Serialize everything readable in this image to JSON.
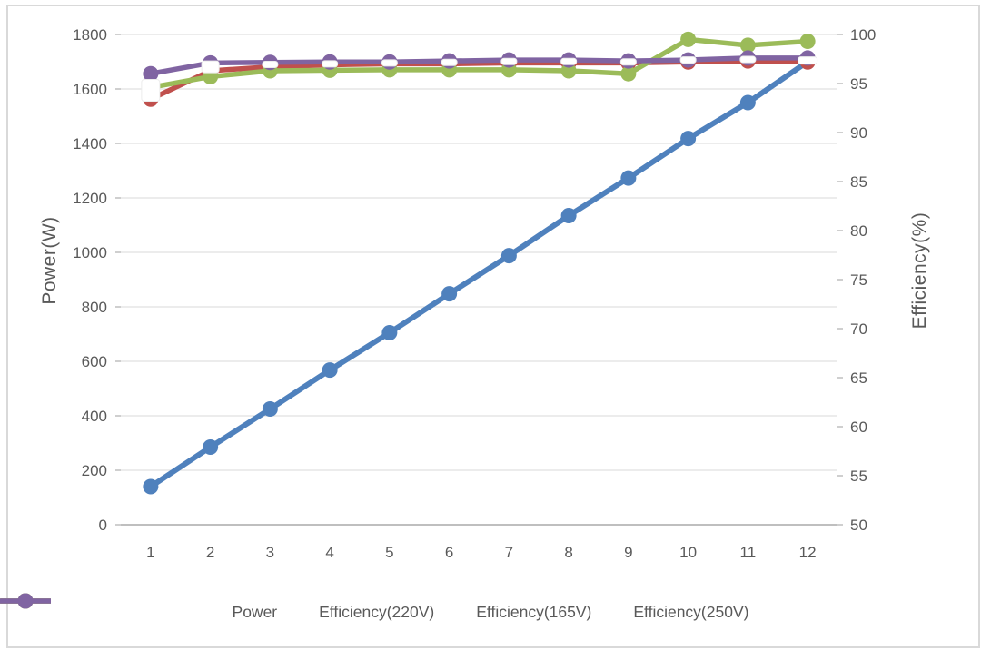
{
  "chart_data": {
    "type": "line",
    "x_categories": [
      "1",
      "2",
      "3",
      "4",
      "5",
      "6",
      "7",
      "8",
      "9",
      "10",
      "11",
      "12"
    ],
    "series": [
      {
        "name": "Power",
        "axis": "left",
        "color": "#4F81BD",
        "values": [
          140,
          285,
          425,
          568,
          705,
          848,
          988,
          1135,
          1273,
          1418,
          1550,
          1700
        ]
      },
      {
        "name": "Efficiency(220V)",
        "axis": "right",
        "color": "#C0504D",
        "values": [
          93.4,
          96.3,
          96.7,
          96.9,
          97.0,
          97.0,
          97.1,
          97.1,
          97.1,
          97.2,
          97.3,
          97.2
        ]
      },
      {
        "name": "Efficiency(165V)",
        "axis": "right",
        "color": "#9BBB59",
        "values": [
          94.6,
          95.7,
          96.3,
          96.35,
          96.4,
          96.4,
          96.4,
          96.3,
          96.0,
          99.5,
          98.9,
          99.3
        ]
      },
      {
        "name": "Efficiency(250V)",
        "axis": "right",
        "color": "#8064A2",
        "values": [
          96.0,
          97.1,
          97.15,
          97.2,
          97.2,
          97.3,
          97.4,
          97.4,
          97.3,
          97.4,
          97.6,
          97.6
        ]
      }
    ],
    "left_axis": {
      "title": "Power(W)",
      "min": 0,
      "max": 1800,
      "tick_step": 200,
      "ticks": [
        1800,
        1600,
        1400,
        1200,
        1000,
        800,
        600,
        400,
        200,
        0
      ]
    },
    "right_axis": {
      "title": "Efficiency(%)",
      "min": 50,
      "max": 100,
      "tick_step": 5,
      "ticks": [
        100,
        95,
        90,
        85,
        80,
        75,
        70,
        65,
        60,
        55,
        50
      ]
    },
    "grid": true,
    "legend_position": "bottom",
    "marker_overlays": [
      {
        "x": 1,
        "value": 94.3,
        "w": 20,
        "h": 24
      },
      {
        "x": 2,
        "value": 96.7,
        "w": 19,
        "h": 13
      },
      {
        "x": 3,
        "value": 96.95,
        "w": 17,
        "h": 7
      },
      {
        "x": 4,
        "value": 97.0,
        "w": 17,
        "h": 7
      },
      {
        "x": 5,
        "value": 97.1,
        "w": 17,
        "h": 7
      },
      {
        "x": 6,
        "value": 97.15,
        "w": 17,
        "h": 7
      },
      {
        "x": 7,
        "value": 97.25,
        "w": 17,
        "h": 7
      },
      {
        "x": 8,
        "value": 97.25,
        "w": 17,
        "h": 7
      },
      {
        "x": 9,
        "value": 97.2,
        "w": 17,
        "h": 7
      },
      {
        "x": 10,
        "value": 97.4,
        "w": 17,
        "h": 7
      },
      {
        "x": 11,
        "value": 97.45,
        "w": 17,
        "h": 7
      },
      {
        "x": 12,
        "value": 97.35,
        "w": 21,
        "h": 8
      }
    ],
    "colors": {
      "grid": "#D9D9D9",
      "axis_line": "#BFBFBF",
      "text": "#595959",
      "frame": "#D9D9D9"
    }
  }
}
